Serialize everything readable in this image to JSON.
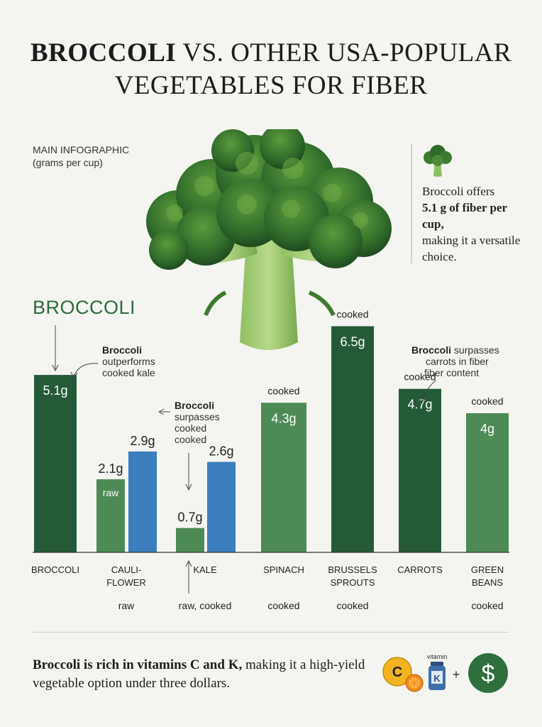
{
  "title": {
    "bold": "BROCCOLI",
    "rest_line1": " VS. OTHER USA-POPULAR",
    "line2": "VEGETABLES FOR FIBER"
  },
  "main_label": {
    "line1": "MAIN INFOGRAPHIC",
    "line2": "(grams per cup)"
  },
  "side_note": {
    "pre": "Broccoli offers",
    "bold": "5.1 g of fiber per cup,",
    "post": "making it a versatile choice."
  },
  "broccoli_heading": "BROCCOLI",
  "annotations": {
    "a1_bold": "Broccoli",
    "a1_rest": [
      "outperforms",
      "cooked kale"
    ],
    "a2_bold": "Broccoli",
    "a2_rest": [
      "surpasses",
      "cooked",
      "cooked"
    ],
    "a3_bold": "Broccoli",
    "a3_rest_line1": " surpasses",
    "a3_rest": [
      "carrots in fiber",
      "fiber content"
    ]
  },
  "footer": {
    "bold": "Broccoli is rich in vitamins C and K,",
    "rest": " making it a high-yield vegetable option under three dollars."
  },
  "foot_icons": {
    "vitamin_c_letter": "C",
    "vitamin_label": "vitamin",
    "vitamin_k_letter": "K",
    "plus": "+",
    "dollar": "$"
  },
  "colors": {
    "dark_green": "#245a37",
    "mid_green": "#4e8a55",
    "blue": "#3a7ebd",
    "baseline": "#333333"
  },
  "chart_data": {
    "type": "bar",
    "unit": "grams per cup",
    "ylim": [
      0,
      7
    ],
    "groups": [
      {
        "category": "BROCCOLI",
        "category_lines": [
          "BROCCOLI"
        ],
        "sub_label": "",
        "bars": [
          {
            "value": 5.1,
            "label": "5.1g",
            "color": "dark",
            "inner_note": "",
            "top_note": ""
          }
        ]
      },
      {
        "category": "CAULI-FLOWER",
        "category_lines": [
          "CAULI-",
          "FLOWER"
        ],
        "sub_label": "raw",
        "bars": [
          {
            "value": 2.1,
            "label": "2.1g",
            "color": "mid",
            "inner_note": "raw",
            "top_note": ""
          },
          {
            "value": 2.9,
            "label": "2.9g",
            "color": "blue",
            "inner_note": "",
            "top_note": ""
          }
        ]
      },
      {
        "category": "KALE",
        "category_lines": [
          "KALE"
        ],
        "sub_label": "raw, cooked",
        "bars": [
          {
            "value": 0.7,
            "label": "0.7g",
            "color": "mid",
            "inner_note": "",
            "top_note": ""
          },
          {
            "value": 2.6,
            "label": "2.6g",
            "color": "blue",
            "inner_note": "",
            "top_note": ""
          }
        ]
      },
      {
        "category": "SPINACH",
        "category_lines": [
          "SPINACH"
        ],
        "sub_label": "cooked",
        "bars": [
          {
            "value": 4.3,
            "label": "4.3g",
            "color": "mid",
            "inner_note": "",
            "top_note": "cooked"
          }
        ]
      },
      {
        "category": "BRUSSELS SPROUTS",
        "category_lines": [
          "BRUSSELS",
          "SPROUTS"
        ],
        "sub_label": "cooked",
        "bars": [
          {
            "value": 6.5,
            "label": "6.5g",
            "color": "dark",
            "inner_note": "",
            "top_note": "cooked"
          }
        ]
      },
      {
        "category": "CARROTS",
        "category_lines": [
          "CARROTS"
        ],
        "sub_label": "",
        "bars": [
          {
            "value": 4.7,
            "label": "4.7g",
            "color": "dark",
            "inner_note": "",
            "top_note": "cooked"
          }
        ]
      },
      {
        "category": "GREEN BEANS",
        "category_lines": [
          "GREEN",
          "BEANS"
        ],
        "sub_label": "cooked",
        "bars": [
          {
            "value": 4.0,
            "label": "4g",
            "color": "mid",
            "inner_note": "",
            "top_note": "cooked"
          }
        ]
      }
    ]
  }
}
